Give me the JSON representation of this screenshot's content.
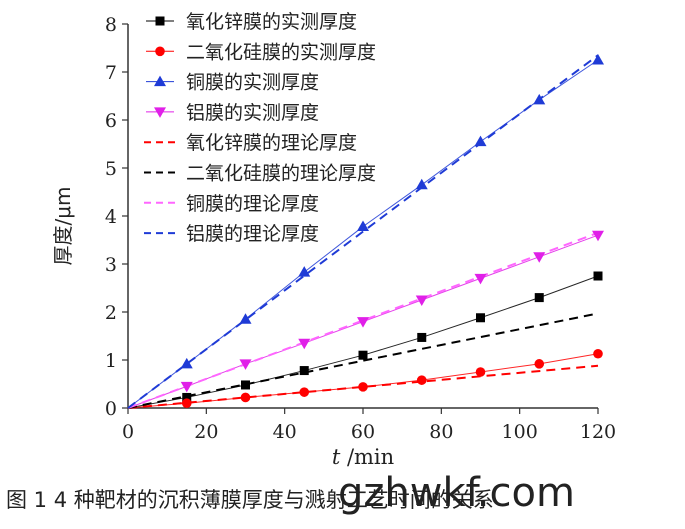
{
  "chart_data": {
    "type": "line",
    "xlabel_italic": "t",
    "xlabel_unit": " /min",
    "ylabel": "厚度/μm",
    "xlim": [
      0,
      120
    ],
    "ylim": [
      0,
      8
    ],
    "x_ticks": [
      0,
      20,
      40,
      60,
      80,
      100,
      120
    ],
    "y_ticks": [
      0,
      1,
      2,
      3,
      4,
      5,
      6,
      7,
      8
    ],
    "legend_position": "top-left",
    "grid": false,
    "x": [
      15,
      30,
      45,
      60,
      75,
      90,
      105,
      120
    ],
    "series": [
      {
        "name": "氧化锌膜的实测厚度",
        "kind": "measured",
        "marker": "square",
        "color": "#000000",
        "values": [
          0.22,
          0.48,
          0.78,
          1.1,
          1.47,
          1.88,
          2.3,
          2.75
        ]
      },
      {
        "name": "二氧化硅膜的实测厚度",
        "kind": "measured",
        "marker": "circle",
        "color": "#ff0000",
        "values": [
          0.1,
          0.22,
          0.33,
          0.44,
          0.58,
          0.75,
          0.92,
          1.13
        ]
      },
      {
        "name": "铜膜的实测厚度",
        "kind": "measured",
        "marker": "triangle-up",
        "color": "#1f3bd6",
        "values": [
          0.92,
          1.85,
          2.83,
          3.78,
          4.65,
          5.55,
          6.42,
          7.25
        ]
      },
      {
        "name": "铝膜的实测厚度",
        "kind": "measured",
        "marker": "triangle-down",
        "color": "#e020e8",
        "values": [
          0.45,
          0.92,
          1.35,
          1.8,
          2.25,
          2.7,
          3.15,
          3.6
        ]
      },
      {
        "name": "氧化锌膜的理论厚度",
        "kind": "theory",
        "color": "#ff0000",
        "x_end": 120,
        "y_end": 0.88
      },
      {
        "name": "二氧化硅膜的理论厚度",
        "kind": "theory",
        "color": "#000000",
        "x_end": 120,
        "y_end": 1.97
      },
      {
        "name": "铜膜的理论厚度",
        "kind": "theory",
        "color": "#ff66ff",
        "x_end": 120,
        "y_end": 3.65
      },
      {
        "name": "铝膜的理论厚度",
        "kind": "theory",
        "color": "#1f3bd6",
        "x_end": 120,
        "y_end": 7.35
      }
    ]
  },
  "caption": "图 1   4 种靶材的沉积薄膜厚度与溅射工艺时间的关系",
  "watermark": "gzhwkf.com"
}
